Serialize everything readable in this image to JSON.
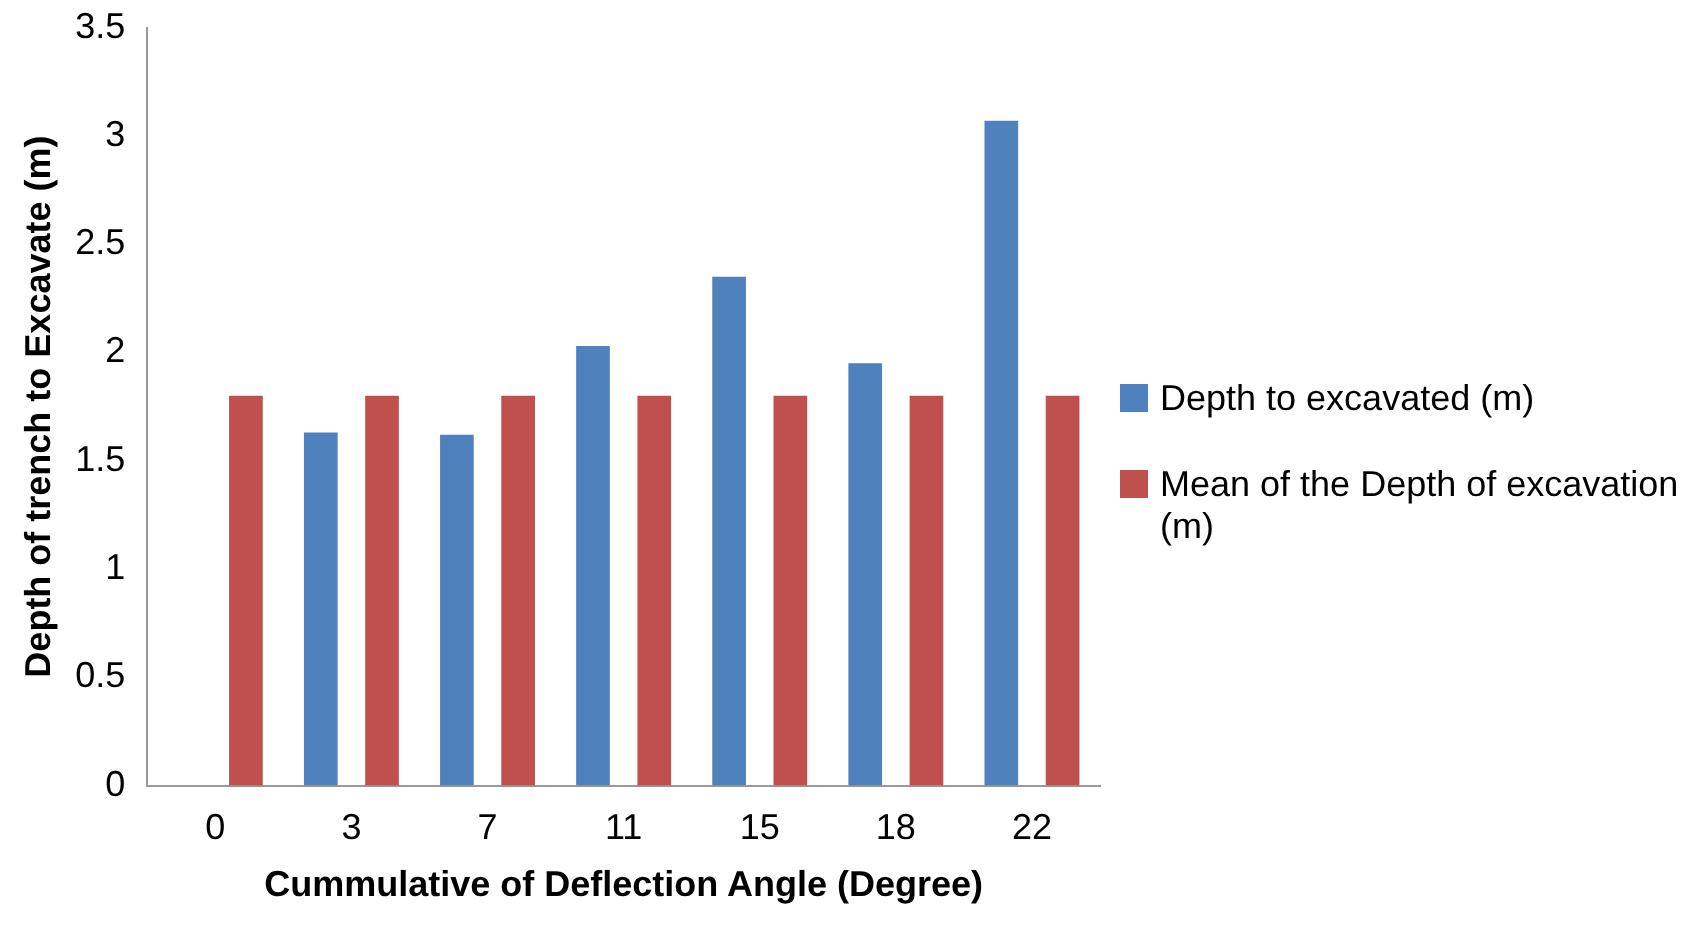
{
  "chart_data": {
    "type": "bar",
    "xlabel": "Cummulative of Deflection Angle (Degree)",
    "ylabel": "Depth of trench to Excavate (m)",
    "categories": [
      "0",
      "3",
      "7",
      "11",
      "15",
      "18",
      "22"
    ],
    "series": [
      {
        "name": "Depth to excavated (m)",
        "color": "#4f81bd",
        "values": [
          0,
          1.63,
          1.62,
          2.03,
          2.35,
          1.95,
          3.07
        ]
      },
      {
        "name": "Mean of the Depth of excavation (m)",
        "color": "#c0504d",
        "values": [
          1.8,
          1.8,
          1.8,
          1.8,
          1.8,
          1.8,
          1.8
        ]
      }
    ],
    "ylim": [
      0,
      3.5
    ],
    "yticks": [
      0,
      0.5,
      1,
      1.5,
      2,
      2.5,
      3,
      3.5
    ],
    "grid": false,
    "legend": "right"
  }
}
